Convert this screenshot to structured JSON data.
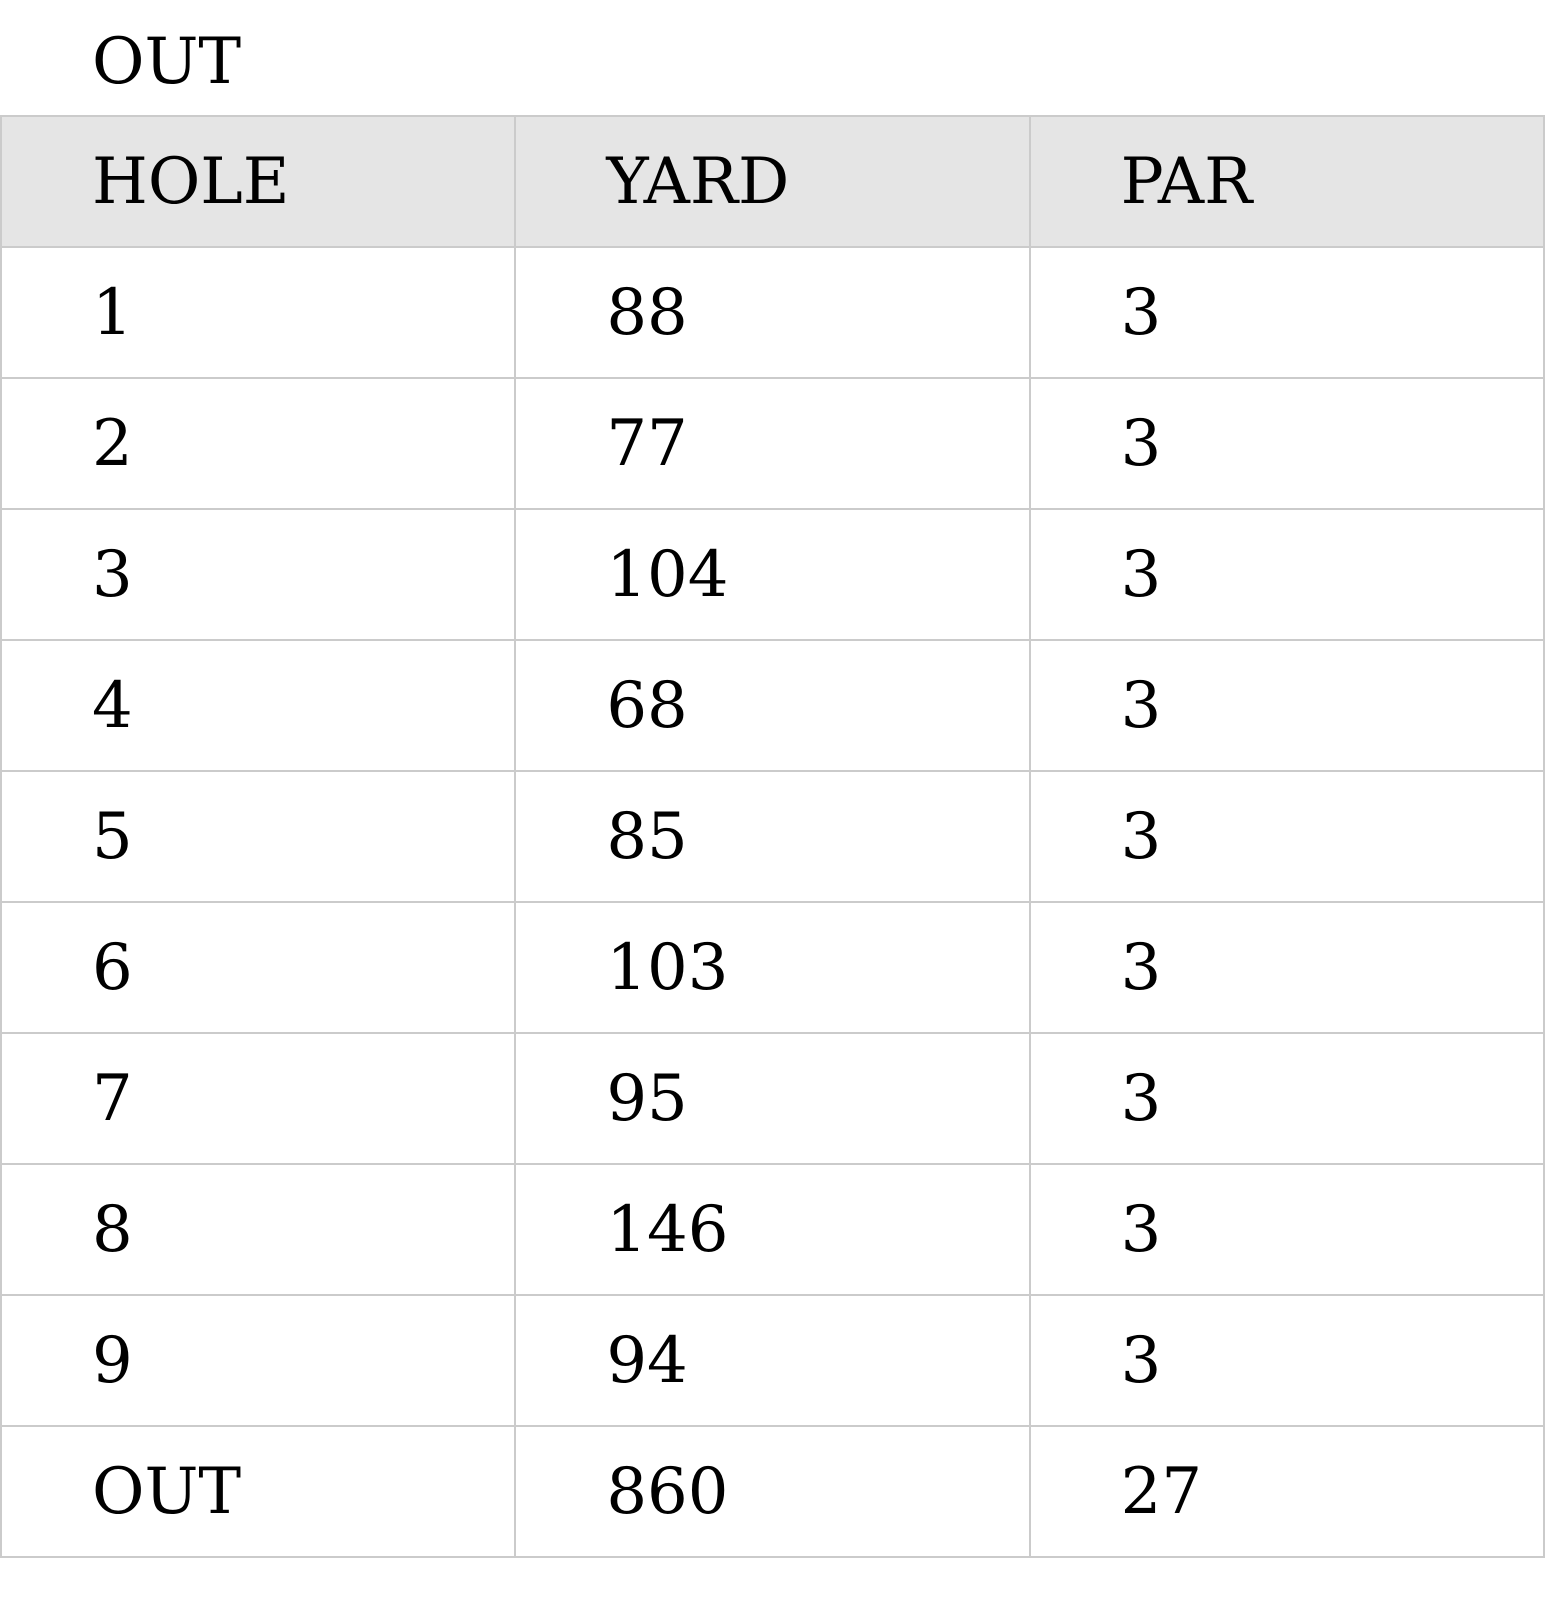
{
  "title": "OUT",
  "table": {
    "headers": [
      "HOLE",
      "YARD",
      "PAR"
    ],
    "rows": [
      [
        "1",
        "88",
        "3"
      ],
      [
        "2",
        "77",
        "3"
      ],
      [
        "3",
        "104",
        "3"
      ],
      [
        "4",
        "68",
        "3"
      ],
      [
        "5",
        "85",
        "3"
      ],
      [
        "6",
        "103",
        "3"
      ],
      [
        "7",
        "95",
        "3"
      ],
      [
        "8",
        "146",
        "3"
      ],
      [
        "9",
        "94",
        "3"
      ],
      [
        "OUT",
        "860",
        "27"
      ]
    ]
  }
}
